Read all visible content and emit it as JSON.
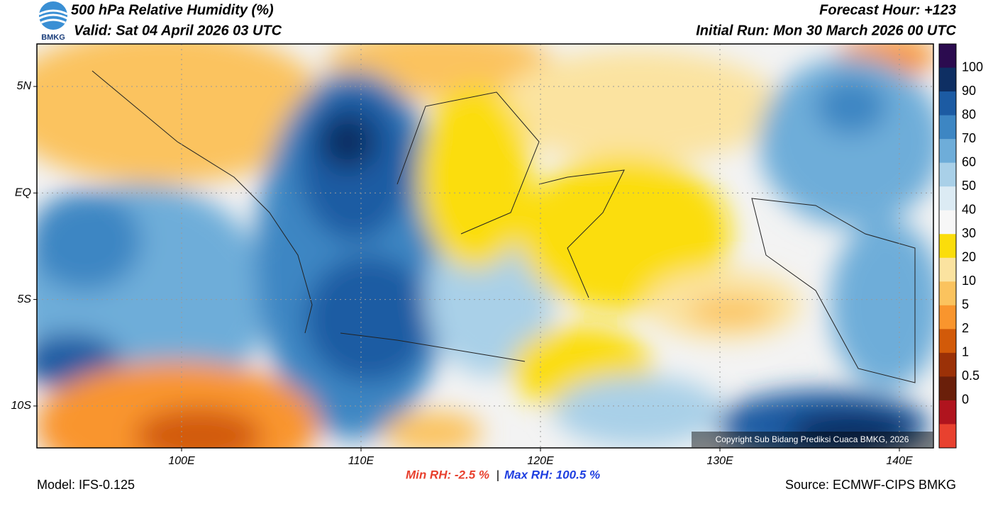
{
  "header": {
    "logo": "BMKG",
    "title": "500 hPa Relative Humidity (%)",
    "valid": "Valid: Sat 04 April 2026 03 UTC",
    "forecast_hour": "Forecast Hour: +123",
    "initial_run": "Initial Run: Mon 30 March 2026 00 UTC"
  },
  "map": {
    "lat_labels": [
      "5N",
      "EQ",
      "5S",
      "10S"
    ],
    "lon_labels": [
      "100E",
      "110E",
      "120E",
      "130E",
      "140E"
    ],
    "copyright": "Copyright Sub Bidang Prediksi Cuaca BMKG, 2026"
  },
  "colorbar": {
    "labels": [
      "100",
      "90",
      "80",
      "70",
      "60",
      "50",
      "40",
      "30",
      "20",
      "10",
      "5",
      "2",
      "1",
      "0.5",
      "0"
    ],
    "colors": [
      "#2b0b4f",
      "#0e2f63",
      "#1c5ba3",
      "#3d86c3",
      "#6eadd9",
      "#a9d0e8",
      "#dcebf4",
      "#f7f7f7",
      "#fbdd0b",
      "#fbe3a0",
      "#fbc35e",
      "#f9952d",
      "#d25a09",
      "#9b3107",
      "#6a1f0a",
      "#b0141e",
      "#e8412f"
    ]
  },
  "footer": {
    "model": "Model: IFS-0.125",
    "min_rh": "Min RH:  -2.5 %",
    "separator": "|",
    "max_rh": "Max RH: 100.5 %",
    "source": "Source: ECMWF-CIPS BMKG"
  }
}
